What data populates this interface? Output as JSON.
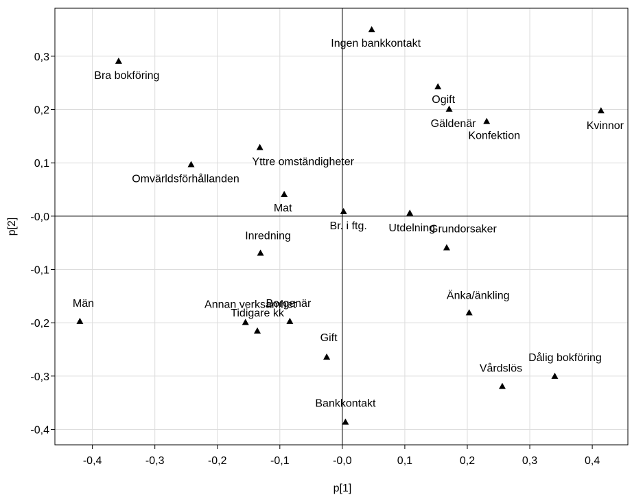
{
  "chart_data": {
    "type": "scatter",
    "x_label": "p[1]",
    "y_label": "p[2]",
    "labels": [
      "Bra bokföring",
      "Ingen bankkontakt",
      "Ogift",
      "Gäldenär",
      "Kvinnor",
      "Konfektion",
      "Yttre omständigheter",
      "Omvärldsförhållanden",
      "Mat",
      "Br. i ftg.",
      "Utdelning",
      "Grundorsaker",
      "Inredning",
      "Män",
      "Annan verksamhet",
      "Tidigare kk",
      "Borgenär",
      "Änka/änkling",
      "Gift",
      "Dålig bokföring",
      "Vårdslös",
      "Bankkontakt"
    ],
    "x": [
      -0.358,
      0.047,
      0.153,
      0.171,
      0.414,
      0.231,
      -0.132,
      -0.242,
      -0.093,
      0.002,
      0.108,
      0.167,
      -0.131,
      -0.42,
      -0.155,
      -0.136,
      -0.084,
      0.203,
      -0.025,
      0.34,
      0.256,
      0.005
    ],
    "values": [
      0.291,
      0.35,
      0.243,
      0.201,
      0.198,
      0.178,
      0.129,
      0.097,
      0.041,
      0.009,
      0.006,
      -0.059,
      -0.069,
      -0.197,
      -0.199,
      -0.215,
      -0.197,
      -0.181,
      -0.264,
      -0.3,
      -0.319,
      -0.386
    ],
    "color": "#000000",
    "xlim": [
      -0.46,
      0.457
    ],
    "ylim": [
      -0.429,
      0.39
    ],
    "xticks": [
      {
        "value": -0.4,
        "label": "-0,4"
      },
      {
        "value": -0.3,
        "label": "-0,3"
      },
      {
        "value": -0.2,
        "label": "-0,2"
      },
      {
        "value": -0.1,
        "label": "-0,1"
      },
      {
        "value": 0,
        "label": "-0,0"
      },
      {
        "value": 0.1,
        "label": "0,1"
      },
      {
        "value": 0.2,
        "label": "0,2"
      },
      {
        "value": 0.3,
        "label": "0,3"
      },
      {
        "value": 0.4,
        "label": "0,4"
      }
    ],
    "yticks": [
      {
        "value": -0.4,
        "label": "-0,4"
      },
      {
        "value": -0.3,
        "label": "-0,3"
      },
      {
        "value": -0.2,
        "label": "-0,2"
      },
      {
        "value": -0.1,
        "label": "-0,1"
      },
      {
        "value": 0,
        "label": "-0,0"
      },
      {
        "value": 0.1,
        "label": "0,1"
      },
      {
        "value": 0.2,
        "label": "0,2"
      },
      {
        "value": 0.3,
        "label": "0,3"
      }
    ],
    "grid": true
  }
}
